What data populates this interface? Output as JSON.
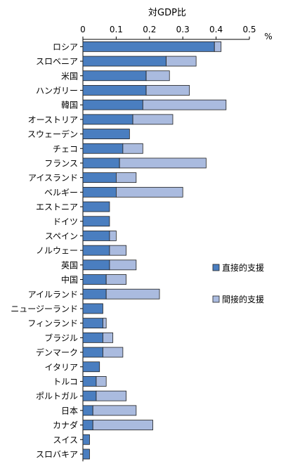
{
  "chart_data": {
    "type": "bar",
    "orientation": "horizontal",
    "stacked": true,
    "title": "対GDP比",
    "unit": "%",
    "xlim": [
      0,
      0.5
    ],
    "xticks": [
      "0",
      "0.1",
      "0.2",
      "0.3",
      "0.4",
      "0.5"
    ],
    "grid": false,
    "legend_position": "right",
    "categories": [
      "ロシア",
      "スロベニア",
      "米国",
      "ハンガリー",
      "韓国",
      "オーストリア",
      "スウェーデン",
      "チェコ",
      "フランス",
      "アイスランド",
      "ベルギー",
      "エストニア",
      "ドイツ",
      "スペイン",
      "ノルウェー",
      "英国",
      "中国",
      "アイルランド",
      "ニュージーランド",
      "フィンランド",
      "ブラジル",
      "デンマーク",
      "イタリア",
      "トルコ",
      "ポルトガル",
      "日本",
      "カナダ",
      "スイス",
      "スロバキア"
    ],
    "series": [
      {
        "name": "直接的支援",
        "color": "#4a7ec0",
        "values": [
          0.395,
          0.25,
          0.19,
          0.19,
          0.18,
          0.15,
          0.14,
          0.12,
          0.11,
          0.1,
          0.1,
          0.08,
          0.08,
          0.08,
          0.08,
          0.08,
          0.07,
          0.07,
          0.06,
          0.06,
          0.06,
          0.06,
          0.05,
          0.04,
          0.04,
          0.03,
          0.03,
          0.02,
          0.02
        ]
      },
      {
        "name": "間接的支援",
        "color": "#aabbdf",
        "values": [
          0.02,
          0.09,
          0.07,
          0.13,
          0.25,
          0.12,
          0.0,
          0.06,
          0.26,
          0.06,
          0.2,
          0.0,
          0.0,
          0.02,
          0.05,
          0.08,
          0.06,
          0.16,
          0.0,
          0.01,
          0.03,
          0.06,
          0.0,
          0.03,
          0.09,
          0.13,
          0.18,
          0.0,
          0.0
        ]
      }
    ]
  }
}
